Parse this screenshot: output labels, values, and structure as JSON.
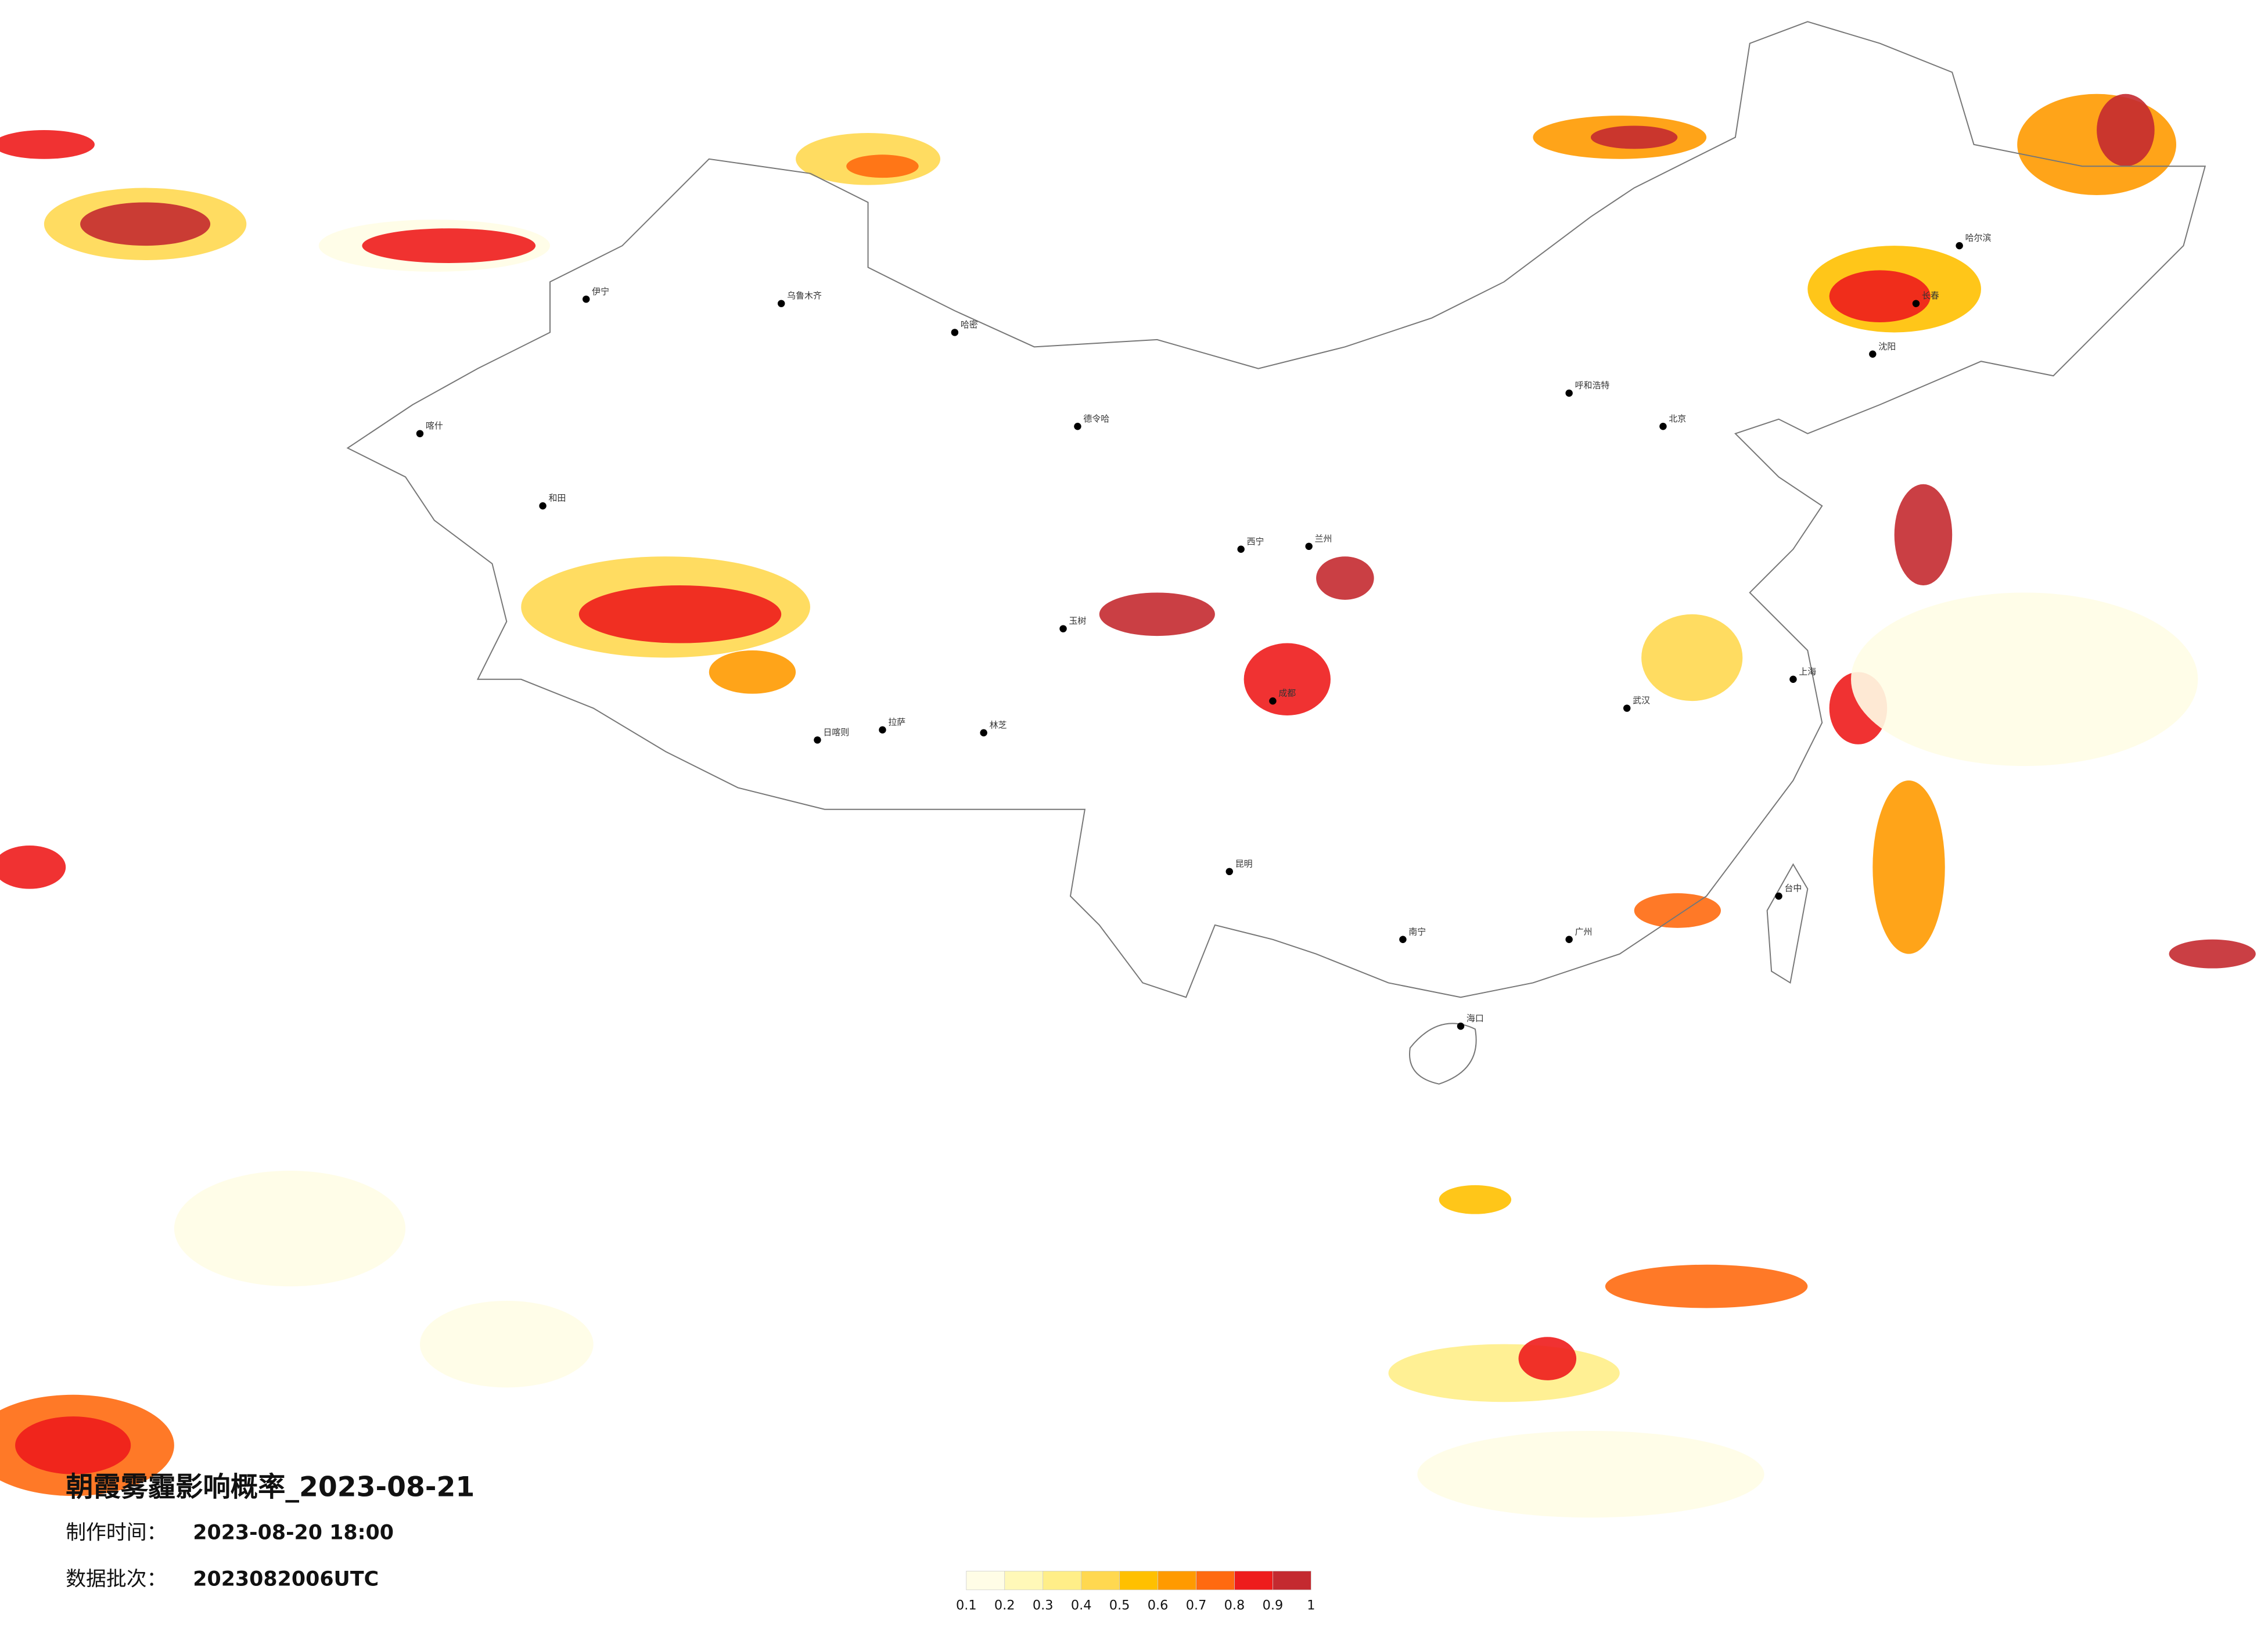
{
  "header": {
    "title": "朝霞雾霾影响概率_2023-08-21",
    "made_label": "制作时间：",
    "made_value": "2023-08-20 18:00",
    "batch_label": "数据批次：",
    "batch_value": "2023082006UTC"
  },
  "legend": {
    "ticks": [
      0.1,
      0.2,
      0.3,
      0.4,
      0.5,
      0.6,
      0.7,
      0.8,
      0.9,
      1
    ],
    "colors": [
      "#fffde6",
      "#fff8b8",
      "#ffee88",
      "#ffd850",
      "#ffc000",
      "#ff9a00",
      "#ff6a10",
      "#ee1c1c",
      "#c42a30"
    ]
  },
  "cities": [
    "乌鲁木齐",
    "伊宁",
    "喀什",
    "和田",
    "哈密",
    "拉萨",
    "日喀则",
    "林芝",
    "玉树",
    "德令哈",
    "西宁",
    "兰州",
    "成都",
    "昆明",
    "南宁",
    "海口",
    "广州",
    "武汉",
    "上海",
    "北京",
    "呼和浩特",
    "沈阳",
    "长春",
    "哈尔滨",
    "台中"
  ]
}
